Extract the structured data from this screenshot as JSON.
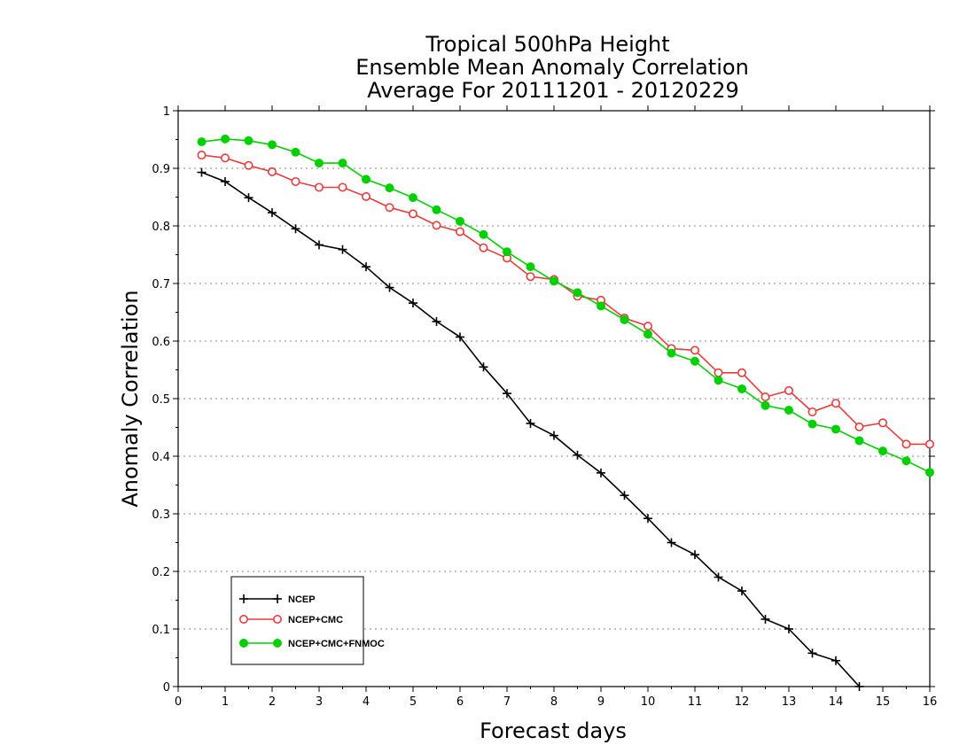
{
  "chart_data": {
    "type": "line",
    "title_lines": [
      "Tropical 500hPa Height",
      "Ensemble Mean Anomaly Correlation",
      "Average For 20111201 - 20120229"
    ],
    "xlabel": "Forecast days",
    "ylabel": "Anomaly Correlation",
    "xlim": [
      0,
      16
    ],
    "ylim": [
      0,
      1
    ],
    "x_ticks": [
      0,
      1,
      2,
      3,
      4,
      5,
      6,
      7,
      8,
      9,
      10,
      11,
      12,
      13,
      14,
      15,
      16
    ],
    "y_ticks": [
      "0",
      "0.1",
      "0.2",
      "0.3",
      "0.4",
      "0.5",
      "0.6",
      "0.7",
      "0.8",
      "0.9",
      "1"
    ],
    "grid": "horizontal dotted",
    "legend_position": "bottom-left",
    "x": [
      0.5,
      1,
      1.5,
      2,
      2.5,
      3,
      3.5,
      4,
      4.5,
      5,
      5.5,
      6,
      6.5,
      7,
      7.5,
      8,
      8.5,
      9,
      9.5,
      10,
      10.5,
      11,
      11.5,
      12,
      12.5,
      13,
      13.5,
      14,
      14.5,
      15,
      15.5,
      16
    ],
    "series": [
      {
        "name": "NCEP",
        "color": "#000000",
        "marker": "plus",
        "values": [
          0.893,
          0.877,
          0.849,
          0.823,
          0.795,
          0.767,
          0.759,
          0.729,
          0.693,
          0.666,
          0.634,
          0.607,
          0.555,
          0.509,
          0.457,
          0.436,
          0.402,
          0.371,
          0.332,
          0.292,
          0.25,
          0.229,
          0.19,
          0.166,
          0.117,
          0.1,
          0.058,
          0.045,
          0.0,
          null,
          null,
          null
        ]
      },
      {
        "name": "NCEP+CMC",
        "color": "#e83c3c",
        "marker": "open-circle",
        "values": [
          0.923,
          0.918,
          0.905,
          0.894,
          0.877,
          0.867,
          0.867,
          0.851,
          0.832,
          0.821,
          0.801,
          0.79,
          0.762,
          0.744,
          0.712,
          0.707,
          0.678,
          0.671,
          0.64,
          0.626,
          0.587,
          0.584,
          0.545,
          0.545,
          0.503,
          0.514,
          0.477,
          0.492,
          0.451,
          0.458,
          0.421,
          0.421
        ]
      },
      {
        "name": "NCEP+CMC+FNMOC",
        "color": "#00d000",
        "marker": "filled-circle",
        "values": [
          0.946,
          0.951,
          0.948,
          0.941,
          0.928,
          0.909,
          0.909,
          0.881,
          0.866,
          0.849,
          0.828,
          0.808,
          0.785,
          0.755,
          0.729,
          0.704,
          0.684,
          0.661,
          0.637,
          0.612,
          0.579,
          0.565,
          0.532,
          0.517,
          0.488,
          0.48,
          0.456,
          0.447,
          0.427,
          0.409,
          0.392,
          0.372
        ]
      }
    ]
  }
}
